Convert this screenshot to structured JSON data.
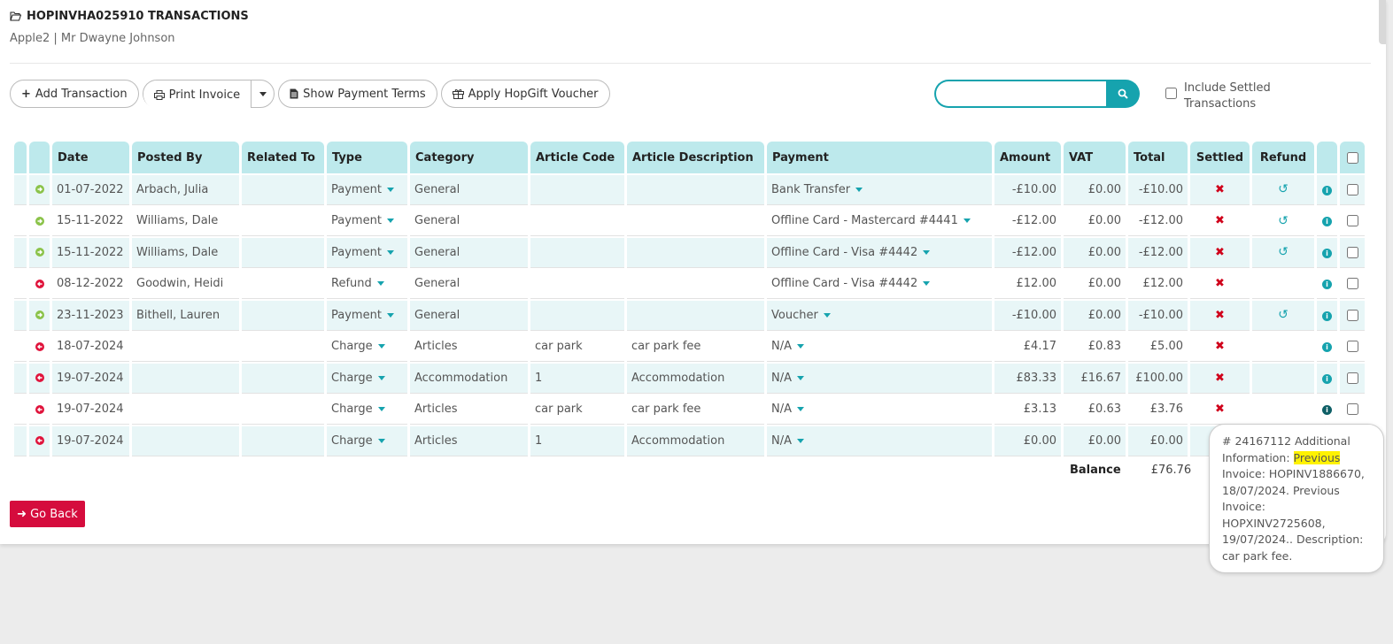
{
  "header": {
    "title": "HOPINVHA025910 TRANSACTIONS",
    "subtitle": "Apple2 | Mr Dwayne Johnson"
  },
  "toolbar": {
    "add_transaction": "Add Transaction",
    "print_invoice": "Print Invoice",
    "show_payment_terms": "Show Payment Terms",
    "apply_voucher": "Apply HopGift Voucher"
  },
  "search": {
    "value": "",
    "placeholder": ""
  },
  "include_settled_label": "Include Settled Transactions",
  "columns": [
    "Date",
    "Posted By",
    "Related To",
    "Type",
    "Category",
    "Article Code",
    "Article Description",
    "Payment",
    "Amount",
    "VAT",
    "Total",
    "Settled",
    "Refund"
  ],
  "rows": [
    {
      "direction": "in",
      "date": "01-07-2022",
      "posted_by": "Arbach, Julia",
      "related_to": "",
      "type": "Payment",
      "category": "General",
      "article_code": "",
      "article_description": "",
      "payment": "Bank Transfer",
      "amount": "-£10.00",
      "vat": "£0.00",
      "total": "-£10.00",
      "refund": true
    },
    {
      "direction": "in",
      "date": "15-11-2022",
      "posted_by": "Williams, Dale",
      "related_to": "",
      "type": "Payment",
      "category": "General",
      "article_code": "",
      "article_description": "",
      "payment": "Offline Card - Mastercard #4441",
      "amount": "-£12.00",
      "vat": "£0.00",
      "total": "-£12.00",
      "refund": true
    },
    {
      "direction": "in",
      "date": "15-11-2022",
      "posted_by": "Williams, Dale",
      "related_to": "",
      "type": "Payment",
      "category": "General",
      "article_code": "",
      "article_description": "",
      "payment": "Offline Card - Visa #4442",
      "amount": "-£12.00",
      "vat": "£0.00",
      "total": "-£12.00",
      "refund": true
    },
    {
      "direction": "out",
      "date": "08-12-2022",
      "posted_by": "Goodwin, Heidi",
      "related_to": "",
      "type": "Refund",
      "category": "General",
      "article_code": "",
      "article_description": "",
      "payment": "Offline Card - Visa #4442",
      "amount": "£12.00",
      "vat": "£0.00",
      "total": "£12.00",
      "refund": false
    },
    {
      "direction": "in",
      "date": "23-11-2023",
      "posted_by": "Bithell, Lauren",
      "related_to": "",
      "type": "Payment",
      "category": "General",
      "article_code": "",
      "article_description": "",
      "payment": "Voucher",
      "amount": "-£10.00",
      "vat": "£0.00",
      "total": "-£10.00",
      "refund": true
    },
    {
      "direction": "out",
      "date": "18-07-2024",
      "posted_by": "",
      "related_to": "",
      "type": "Charge",
      "category": "Articles",
      "article_code": "car park",
      "article_description": "car park fee",
      "payment": "N/A",
      "amount": "£4.17",
      "vat": "£0.83",
      "total": "£5.00",
      "refund": false
    },
    {
      "direction": "out",
      "date": "19-07-2024",
      "posted_by": "",
      "related_to": "",
      "type": "Charge",
      "category": "Accommodation",
      "article_code": "1",
      "article_description": "Accommodation",
      "payment": "N/A",
      "amount": "£83.33",
      "vat": "£16.67",
      "total": "£100.00",
      "refund": false
    },
    {
      "direction": "out",
      "date": "19-07-2024",
      "posted_by": "",
      "related_to": "",
      "type": "Charge",
      "category": "Articles",
      "article_code": "car park",
      "article_description": "car park fee",
      "payment": "N/A",
      "amount": "£3.13",
      "vat": "£0.63",
      "total": "£3.76",
      "refund": false
    },
    {
      "direction": "out",
      "date": "19-07-2024",
      "posted_by": "",
      "related_to": "",
      "type": "Charge",
      "category": "Articles",
      "article_code": "1",
      "article_description": "Accommodation",
      "payment": "N/A",
      "amount": "£0.00",
      "vat": "£0.00",
      "total": "£0.00",
      "refund": false
    }
  ],
  "balance": {
    "label": "Balance",
    "value": "£76.76"
  },
  "go_back": "Go Back",
  "tooltip": {
    "prefix": "# 24167112 Additional Information: ",
    "highlight": "Previous",
    "suffix": " Invoice: HOPINV1886670, 18/07/2024. Previous Invoice: HOPXINV2725608, 19/07/2024.. Description: car park fee."
  },
  "colors": {
    "accent": "#16a3ae",
    "header_bg": "#bde9ec",
    "danger": "#d50c3d",
    "in_icon": "#8bc34a"
  }
}
